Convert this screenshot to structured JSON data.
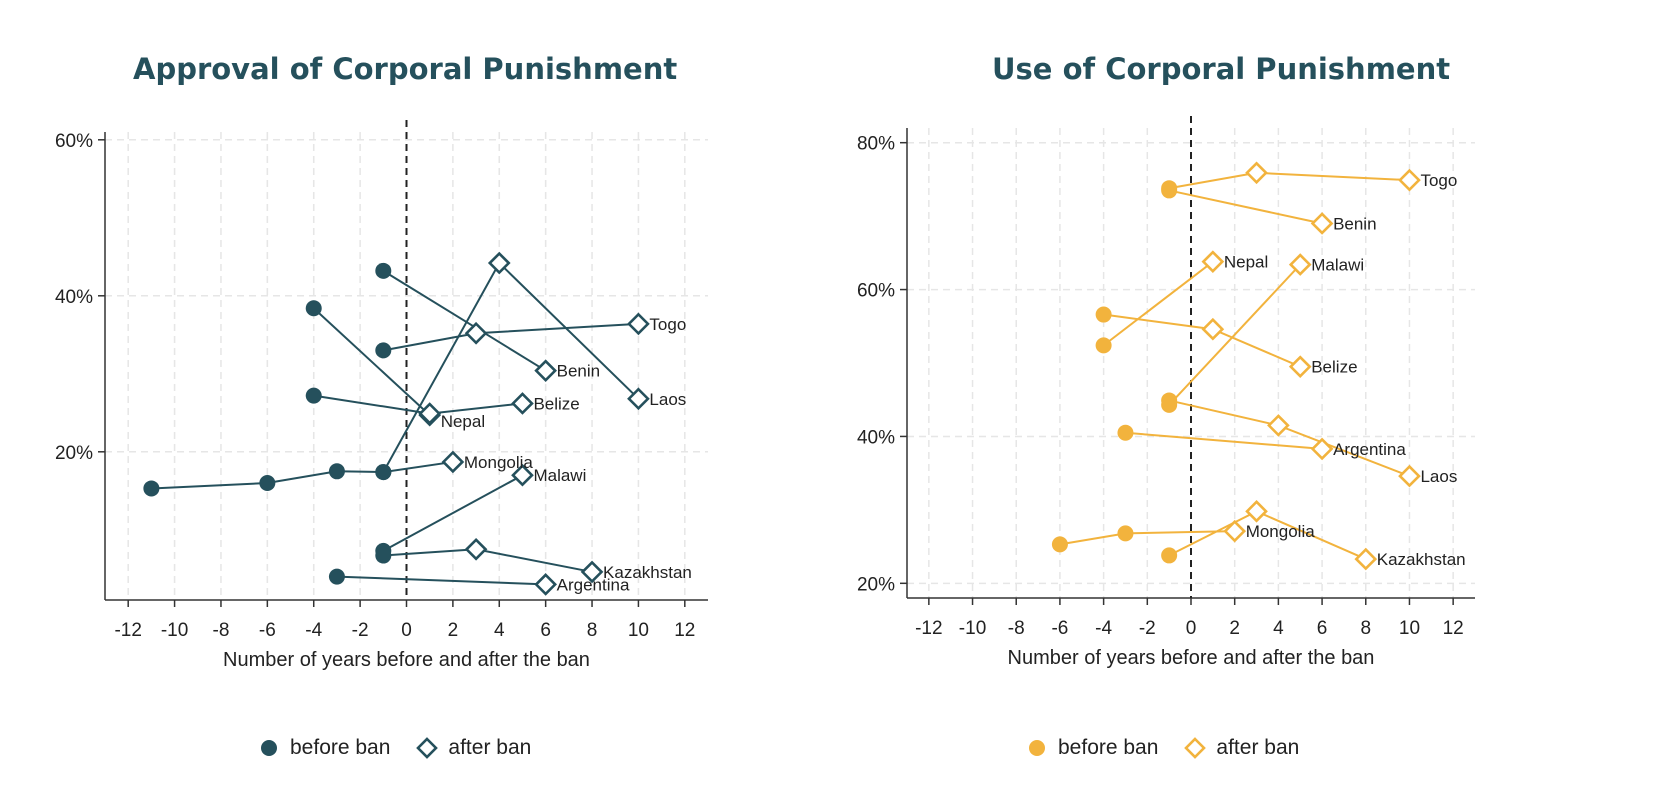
{
  "chart_data": [
    {
      "type": "line",
      "title": "Approval of Corporal Punishment",
      "xlabel": "Number of years before and after the ban",
      "ylabel": "",
      "xlim": [
        -13,
        13
      ],
      "ylim": [
        1,
        61
      ],
      "xticks": [
        -12,
        -10,
        -8,
        -6,
        -4,
        -2,
        0,
        2,
        4,
        6,
        8,
        10,
        12
      ],
      "yticks": [
        20,
        40,
        60
      ],
      "ytick_suffix": "%",
      "grid": true,
      "legend_position": "bottom",
      "color": "#25505c",
      "legend": [
        "before ban",
        "after ban"
      ],
      "series": [
        {
          "name": "Togo",
          "points": [
            {
              "x": -1,
              "y": 33,
              "t": "before"
            },
            {
              "x": 3,
              "y": 35.2,
              "t": "after"
            },
            {
              "x": 10,
              "y": 36.4,
              "t": "after"
            }
          ]
        },
        {
          "name": "Benin",
          "points": [
            {
              "x": -1,
              "y": 43.2,
              "t": "before"
            },
            {
              "x": 6,
              "y": 30.4,
              "t": "after"
            }
          ]
        },
        {
          "name": "Laos",
          "points": [
            {
              "x": -1,
              "y": 17.4,
              "t": "before"
            },
            {
              "x": 4,
              "y": 44.2,
              "t": "after"
            },
            {
              "x": 10,
              "y": 26.8,
              "t": "after"
            }
          ]
        },
        {
          "name": "Nepal",
          "points": [
            {
              "x": -4,
              "y": 38.4,
              "t": "before"
            },
            {
              "x": 1,
              "y": 24.7,
              "t": "after"
            }
          ]
        },
        {
          "name": "Belize",
          "points": [
            {
              "x": -4,
              "y": 27.2,
              "t": "before"
            },
            {
              "x": 1,
              "y": 24.9,
              "t": "after"
            },
            {
              "x": 5,
              "y": 26.2,
              "t": "after"
            }
          ]
        },
        {
          "name": "Mongolia",
          "points": [
            {
              "x": -11,
              "y": 15.3,
              "t": "before"
            },
            {
              "x": -6,
              "y": 16,
              "t": "before"
            },
            {
              "x": -3,
              "y": 17.5,
              "t": "before"
            },
            {
              "x": -1,
              "y": 17.4,
              "t": "before"
            },
            {
              "x": 2,
              "y": 18.7,
              "t": "after"
            }
          ]
        },
        {
          "name": "Malawi",
          "points": [
            {
              "x": -1,
              "y": 7.3,
              "t": "before"
            },
            {
              "x": 5,
              "y": 17,
              "t": "after"
            }
          ]
        },
        {
          "name": "Kazakhstan",
          "points": [
            {
              "x": -1,
              "y": 6.7,
              "t": "before"
            },
            {
              "x": 3,
              "y": 7.5,
              "t": "after"
            },
            {
              "x": 8,
              "y": 4.6,
              "t": "after"
            }
          ]
        },
        {
          "name": "Argentina",
          "points": [
            {
              "x": -3,
              "y": 4,
              "t": "before"
            },
            {
              "x": 6,
              "y": 3,
              "t": "after"
            }
          ]
        }
      ]
    },
    {
      "type": "line",
      "title": "Use of Corporal Punishment",
      "xlabel": "Number of years before and after the ban",
      "ylabel": "",
      "xlim": [
        -13,
        13
      ],
      "ylim": [
        18,
        82
      ],
      "xticks": [
        -12,
        -10,
        -8,
        -6,
        -4,
        -2,
        0,
        2,
        4,
        6,
        8,
        10,
        12
      ],
      "yticks": [
        20,
        40,
        60,
        80
      ],
      "ytick_suffix": "%",
      "grid": true,
      "legend_position": "bottom",
      "color": "#f2b33d",
      "legend": [
        "before ban",
        "after ban"
      ],
      "series": [
        {
          "name": "Togo",
          "points": [
            {
              "x": -1,
              "y": 73.8,
              "t": "before"
            },
            {
              "x": 3,
              "y": 75.9,
              "t": "after"
            },
            {
              "x": 10,
              "y": 74.9,
              "t": "after"
            }
          ]
        },
        {
          "name": "Benin",
          "points": [
            {
              "x": -1,
              "y": 73.5,
              "t": "before"
            },
            {
              "x": 6,
              "y": 69,
              "t": "after"
            }
          ]
        },
        {
          "name": "Nepal",
          "points": [
            {
              "x": -4,
              "y": 52.4,
              "t": "before"
            },
            {
              "x": 1,
              "y": 63.8,
              "t": "after"
            }
          ]
        },
        {
          "name": "Malawi",
          "points": [
            {
              "x": -1,
              "y": 44.3,
              "t": "before"
            },
            {
              "x": 5,
              "y": 63.4,
              "t": "after"
            }
          ]
        },
        {
          "name": "Belize",
          "points": [
            {
              "x": -4,
              "y": 56.6,
              "t": "before"
            },
            {
              "x": 1,
              "y": 54.6,
              "t": "after"
            },
            {
              "x": 5,
              "y": 49.5,
              "t": "after"
            }
          ]
        },
        {
          "name": "Argentina",
          "points": [
            {
              "x": -3,
              "y": 40.5,
              "t": "before"
            },
            {
              "x": 6,
              "y": 38.3,
              "t": "after"
            }
          ]
        },
        {
          "name": "Laos",
          "points": [
            {
              "x": -1,
              "y": 44.9,
              "t": "before"
            },
            {
              "x": 4,
              "y": 41.5,
              "t": "after"
            },
            {
              "x": 10,
              "y": 34.6,
              "t": "after"
            }
          ]
        },
        {
          "name": "Mongolia",
          "points": [
            {
              "x": -6,
              "y": 25.3,
              "t": "before"
            },
            {
              "x": -3,
              "y": 26.8,
              "t": "before"
            },
            {
              "x": 2,
              "y": 27.1,
              "t": "after"
            }
          ]
        },
        {
          "name": "Kazakhstan",
          "points": [
            {
              "x": -1,
              "y": 23.8,
              "t": "before"
            },
            {
              "x": 3,
              "y": 29.8,
              "t": "after"
            },
            {
              "x": 8,
              "y": 23.3,
              "t": "after"
            }
          ]
        }
      ]
    }
  ]
}
